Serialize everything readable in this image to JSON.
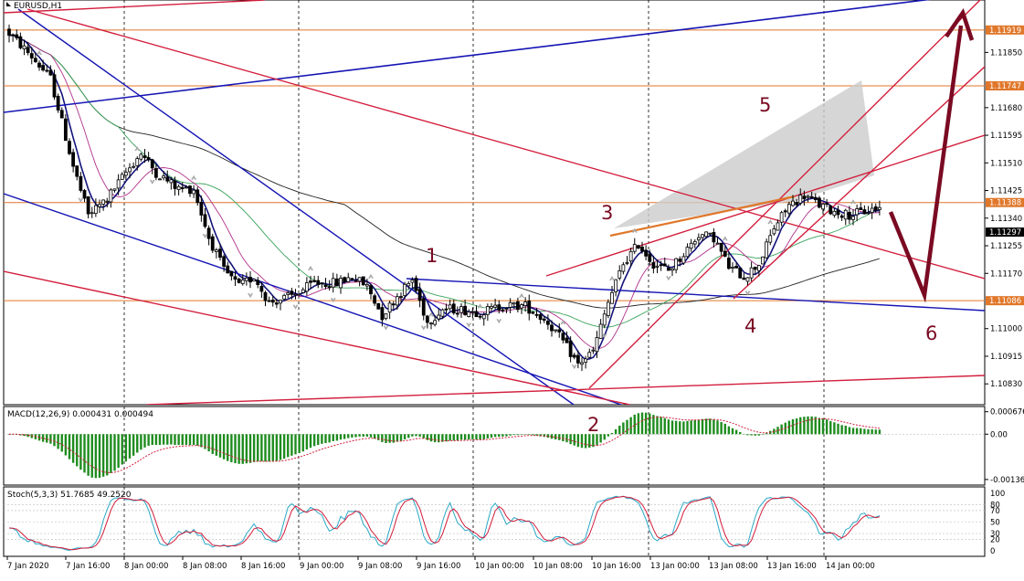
{
  "chart_data": {
    "type": "candlestick",
    "symbol_label": "EURUSD,H1",
    "colors": {
      "background": "#ffffff",
      "candle_up": "#ffffff",
      "candle_down": "#000000",
      "blue_lines": "#1414b4",
      "red_lines": "#d21e3c",
      "orange_levels": "#e0772a",
      "wave_labels": "#7a0a22",
      "macd_hist": "#1e8c1e",
      "macd_signal": "#d21e3c",
      "stoch_main": "#2aa8c8",
      "stoch_signal": "#d21e3c",
      "projection_zone": "#cccccc"
    },
    "price_axis": {
      "ylim": [
        1.1078,
        1.12
      ],
      "ticks": [
        "1.11850",
        "1.11680",
        "1.11595",
        "1.11510",
        "1.11425",
        "1.11340",
        "1.11255",
        "1.11170",
        "1.11000",
        "1.10915",
        "1.10830"
      ],
      "current_price": "1.11297"
    },
    "levels": [
      {
        "label": "1.11919",
        "value": 1.11919,
        "color": "#e0772a"
      },
      {
        "label": "1.11747",
        "value": 1.11747,
        "color": "#e0772a"
      },
      {
        "label": "1.11388",
        "value": 1.11388,
        "color": "#e0772a"
      },
      {
        "label": "1.11086",
        "value": 1.11086,
        "color": "#e0772a"
      }
    ],
    "time_axis": [
      "7 Jan 2020",
      "7 Jan 16:00",
      "8 Jan 00:00",
      "8 Jan 08:00",
      "8 Jan 16:00",
      "9 Jan 00:00",
      "9 Jan 08:00",
      "9 Jan 16:00",
      "10 Jan 00:00",
      "10 Jan 08:00",
      "10 Jan 16:00",
      "13 Jan 00:00",
      "13 Jan 08:00",
      "13 Jan 16:00",
      "14 Jan 00:00"
    ],
    "wave_labels": [
      "1",
      "2",
      "3",
      "4",
      "5",
      "6"
    ],
    "indicators": {
      "macd": {
        "label": "MACD(12,26,9) 0.000431 0.000494",
        "ticks": [
          "0.000676",
          "0.00",
          "-0.001364"
        ],
        "ylim": [
          -0.00145,
          0.00075
        ]
      },
      "stochastic": {
        "label": "Stoch(5,3,3) 51.7685 49.2520",
        "ticks": [
          "100",
          "80",
          "70",
          "50",
          "30",
          "20",
          "0"
        ],
        "ylim": [
          0,
          100
        ]
      }
    }
  }
}
